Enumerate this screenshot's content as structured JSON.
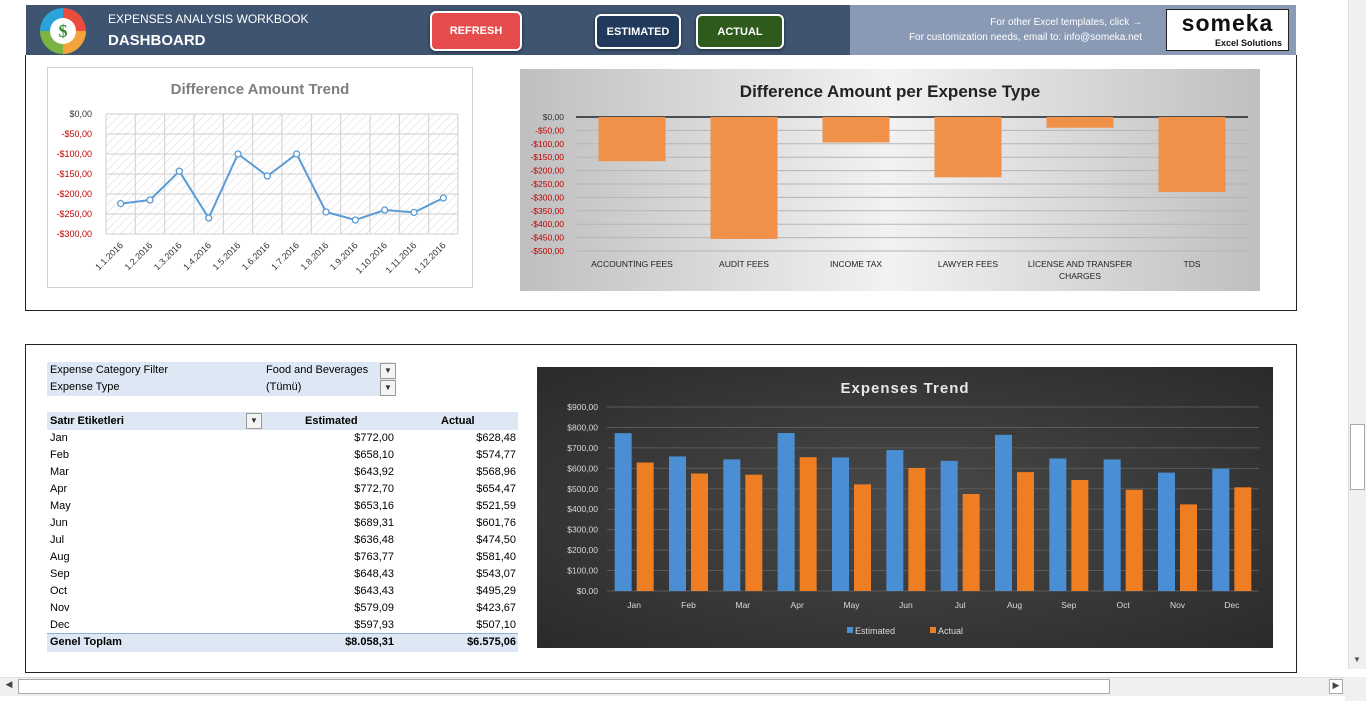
{
  "header": {
    "workbook_title": "EXPENSES ANALYSIS WORKBOOK",
    "dashboard_title": "DASHBOARD",
    "logo_symbol": "$",
    "refresh_label": "REFRESH",
    "estimated_label": "ESTIMATED",
    "actual_label": "ACTUAL",
    "note_templates": "For other Excel templates, click →",
    "note_contact": "For customization needs, email to: info@someka.net",
    "brand_name": "someka",
    "brand_sub": "Excel Solutions",
    "colors": {
      "refresh": "#e74c4c",
      "estimated": "#213a5c",
      "actual": "#2e5a1c",
      "bar": "#3e5470"
    }
  },
  "filters": {
    "category_label": "Expense Category Filter",
    "category_value": "Food and Beverages",
    "type_label": "Expense Type",
    "type_value": "(Tümü)"
  },
  "pivot": {
    "col_label": "Satır Etiketleri",
    "col_estimated": "Estimated",
    "col_actual": "Actual",
    "rows": [
      {
        "month": "Jan",
        "estimated": "$772,00",
        "actual": "$628,48"
      },
      {
        "month": "Feb",
        "estimated": "$658,10",
        "actual": "$574,77"
      },
      {
        "month": "Mar",
        "estimated": "$643,92",
        "actual": "$568,96"
      },
      {
        "month": "Apr",
        "estimated": "$772,70",
        "actual": "$654,47"
      },
      {
        "month": "May",
        "estimated": "$653,16",
        "actual": "$521,59"
      },
      {
        "month": "Jun",
        "estimated": "$689,31",
        "actual": "$601,76"
      },
      {
        "month": "Jul",
        "estimated": "$636,48",
        "actual": "$474,50"
      },
      {
        "month": "Aug",
        "estimated": "$763,77",
        "actual": "$581,40"
      },
      {
        "month": "Sep",
        "estimated": "$648,43",
        "actual": "$543,07"
      },
      {
        "month": "Oct",
        "estimated": "$643,43",
        "actual": "$495,29"
      },
      {
        "month": "Nov",
        "estimated": "$579,09",
        "actual": "$423,67"
      },
      {
        "month": "Dec",
        "estimated": "$597,93",
        "actual": "$507,10"
      }
    ],
    "total_label": "Genel Toplam",
    "total_estimated": "$8.058,31",
    "total_actual": "$6.575,06"
  },
  "chart_data": [
    {
      "type": "line",
      "title": "Difference Amount Trend",
      "x": [
        "1.1.2016",
        "1.2.2016",
        "1.3.2016",
        "1.4.2016",
        "1.5.2016",
        "1.6.2016",
        "1.7.2016",
        "1.8.2016",
        "1.9.2016",
        "1.10.2016",
        "1.11.2016",
        "1.12.2016"
      ],
      "series": [
        {
          "values": [
            -224,
            -215,
            -143,
            -260,
            -100,
            -155,
            -100,
            -245,
            -265,
            -240,
            -246,
            -210
          ]
        }
      ],
      "y_ticks": [
        "$0,00",
        "-$50,00",
        "-$100,00",
        "-$150,00",
        "-$200,00",
        "-$250,00",
        "-$300,00"
      ],
      "ylim": [
        -300,
        0
      ],
      "grid": true,
      "colors": {
        "line": "#5b9bd5",
        "tick_negative": "#c00000"
      }
    },
    {
      "type": "bar",
      "title": "Difference Amount per Expense Type",
      "categories": [
        "ACCOUNTİNG FEES",
        "AUDİT FEES",
        "INCOME TAX",
        "LAWYER FEES",
        "LİCENSE AND TRANSFER CHARGES",
        "TDS"
      ],
      "values": [
        -165,
        -455,
        -95,
        -225,
        -40,
        -280
      ],
      "y_ticks": [
        "$0,00",
        "-$50,00",
        "-$100,00",
        "-$150,00",
        "-$200,00",
        "-$250,00",
        "-$300,00",
        "-$350,00",
        "-$400,00",
        "-$450,00",
        "-$500,00"
      ],
      "ylim": [
        -500,
        0
      ],
      "grid": true,
      "colors": {
        "bar": "#f0914a",
        "tick_negative": "#c00000"
      }
    },
    {
      "type": "bar",
      "title": "Expenses Trend",
      "categories": [
        "Jan",
        "Feb",
        "Mar",
        "Apr",
        "May",
        "Jun",
        "Jul",
        "Aug",
        "Sep",
        "Oct",
        "Nov",
        "Dec"
      ],
      "series": [
        {
          "name": "Estimated",
          "values": [
            772.0,
            658.1,
            643.92,
            772.7,
            653.16,
            689.31,
            636.48,
            763.77,
            648.43,
            643.43,
            579.09,
            597.93
          ]
        },
        {
          "name": "Actual",
          "values": [
            628.48,
            574.77,
            568.96,
            654.47,
            521.59,
            601.76,
            474.5,
            581.4,
            543.07,
            495.29,
            423.67,
            507.1
          ]
        }
      ],
      "y_ticks": [
        "$900,00",
        "$800,00",
        "$700,00",
        "$600,00",
        "$500,00",
        "$400,00",
        "$300,00",
        "$200,00",
        "$100,00",
        "$0,00"
      ],
      "ylim": [
        0,
        900
      ],
      "legend": "bottom",
      "grid": true,
      "colors": {
        "Estimated": "#4a8fd4",
        "Actual": "#ef7d22"
      }
    }
  ]
}
